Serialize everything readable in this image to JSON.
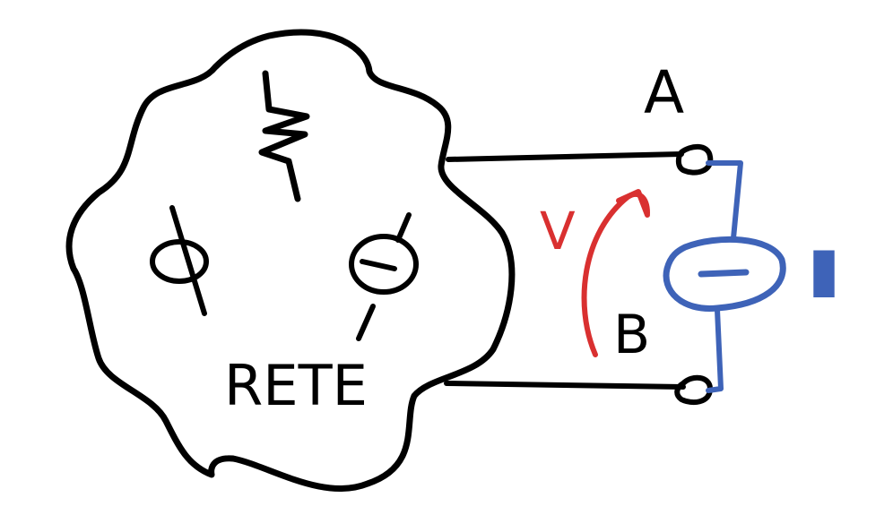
{
  "labels": {
    "network": "RETE",
    "terminal_a": "A",
    "terminal_b": "B",
    "voltage": "V",
    "current": "I"
  },
  "colors": {
    "black_ink": "#000000",
    "red_ink": "#d93030",
    "blue_ink": "#3e63b8",
    "background": "#ffffff"
  },
  "icons": {
    "resistor": "resistor-zigzag-icon",
    "voltage_source": "voltage-source-circle-icon",
    "current_source": "current-source-circle-icon",
    "network_boundary": "cloud-blob-icon"
  }
}
